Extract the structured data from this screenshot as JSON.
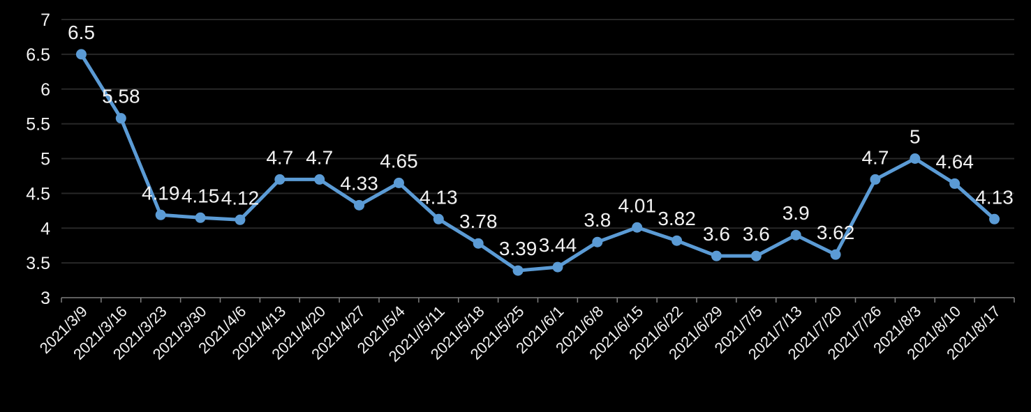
{
  "chart_data": {
    "type": "line",
    "title": "",
    "xlabel": "",
    "ylabel": "",
    "categories": [
      "2021/3/9",
      "2021/3/16",
      "2021/3/23",
      "2021/3/30",
      "2021/4/6",
      "2021/4/13",
      "2021/4/20",
      "2021/4/27",
      "2021/5/4",
      "2021//5/11",
      "2021/5/18",
      "2021/5/25",
      "2021/6/1",
      "2021/6/8",
      "2021/6/15",
      "2021/6/22",
      "2021/6/29",
      "2021/7/5",
      "2021/7/13",
      "2021/7/20",
      "2021/7/26",
      "2021/8/3",
      "2021/8/10",
      "2021/8/17"
    ],
    "values": [
      6.5,
      5.58,
      4.19,
      4.15,
      4.12,
      4.7,
      4.7,
      4.33,
      4.65,
      4.13,
      3.78,
      3.39,
      3.44,
      3.8,
      4.01,
      3.82,
      3.6,
      3.6,
      3.9,
      3.62,
      4.7,
      5,
      4.64,
      4.13
    ],
    "point_labels": [
      "6.5",
      "5.58",
      "4.19",
      "4.15",
      "4.12",
      "4.7",
      "4.7",
      "4.33",
      "4.65",
      "4.13",
      "3.78",
      "3.39",
      "3.44",
      "3.8",
      "4.01",
      "3.82",
      "3.6",
      "3.6",
      "3.9",
      "3.62",
      "4.7",
      "5",
      "4.64",
      "4.13"
    ],
    "ylim": [
      3,
      7
    ],
    "ytick_step": 0.5,
    "ytick_labels": [
      "3",
      "3.5",
      "4",
      "4.5",
      "5",
      "5.5",
      "6",
      "6.5",
      "7"
    ],
    "grid": true,
    "legend_position": "none",
    "x_label_rotation_deg": -45,
    "colors": {
      "background": "#000000",
      "line": "#5B9BD5",
      "marker": "#5B9BD5",
      "data_label_text": "#F2F2F2",
      "axis_text": "#F2F2F2",
      "gridline": "#282828",
      "axis_line": "#7F7F7F"
    }
  }
}
